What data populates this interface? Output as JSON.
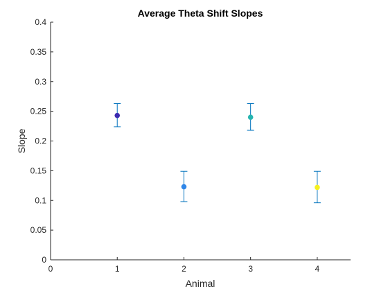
{
  "chart_data": {
    "type": "scatter",
    "title": "Average Theta Shift Slopes",
    "xlabel": "Animal",
    "ylabel": "Slope",
    "xlim": [
      0,
      4.5
    ],
    "ylim": [
      0,
      0.4
    ],
    "xticks": [
      "0",
      "1",
      "2",
      "3",
      "4"
    ],
    "yticks": [
      "0",
      "0.05",
      "0.1",
      "0.15",
      "0.2",
      "0.25",
      "0.3",
      "0.35",
      "0.4"
    ],
    "grid": false,
    "errorbar_color": "#0072BD",
    "points": [
      {
        "x": 1,
        "y": 0.243,
        "lower": 0.224,
        "upper": 0.263,
        "color": "#3B2AB0"
      },
      {
        "x": 2,
        "y": 0.123,
        "lower": 0.098,
        "upper": 0.149,
        "color": "#2F86E8"
      },
      {
        "x": 3,
        "y": 0.24,
        "lower": 0.218,
        "upper": 0.263,
        "color": "#27B5B0"
      },
      {
        "x": 4,
        "y": 0.122,
        "lower": 0.096,
        "upper": 0.149,
        "color": "#F5F020"
      }
    ]
  }
}
